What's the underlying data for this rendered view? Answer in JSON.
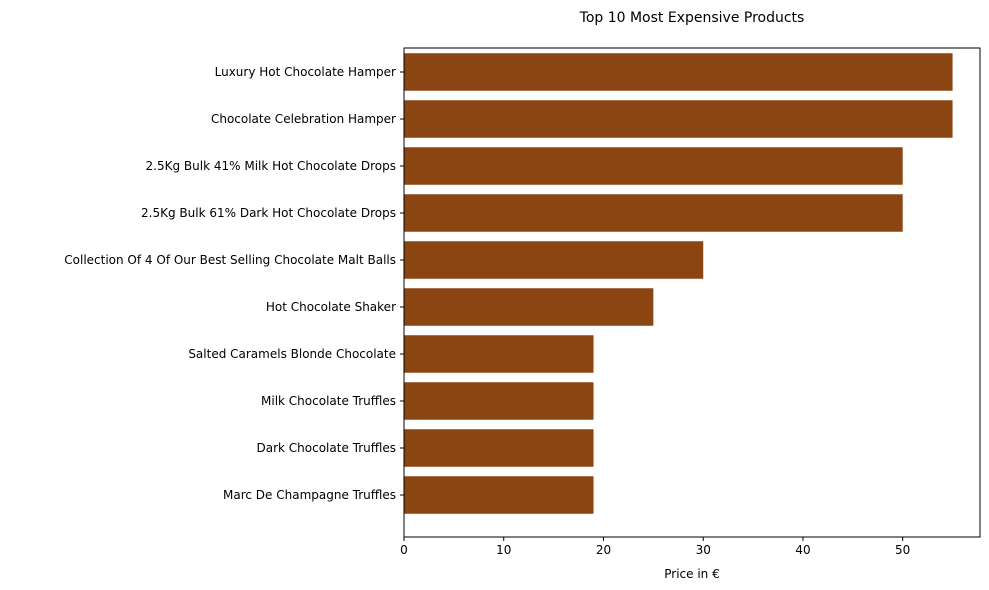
{
  "chart_data": {
    "type": "bar",
    "orientation": "horizontal",
    "title": "Top 10 Most Expensive Products",
    "xlabel": "Price in €",
    "ylabel": "",
    "xlim": [
      0,
      57.75
    ],
    "xticks": [
      0,
      10,
      20,
      30,
      40,
      50
    ],
    "grid": false,
    "bar_color": "#8B4513",
    "categories": [
      "Luxury Hot Chocolate Hamper",
      "Chocolate Celebration Hamper",
      "2.5Kg Bulk 41% Milk Hot Chocolate Drops",
      "2.5Kg Bulk 61% Dark Hot Chocolate Drops",
      "Collection Of 4 Of Our Best Selling Chocolate Malt Balls",
      "Hot Chocolate Shaker",
      "Salted Caramels Blonde Chocolate",
      "Milk Chocolate Truffles",
      "Dark Chocolate Truffles",
      "Marc De Champagne Truffles"
    ],
    "values": [
      55,
      55,
      50,
      50,
      30,
      25,
      19,
      19,
      19,
      19
    ]
  }
}
